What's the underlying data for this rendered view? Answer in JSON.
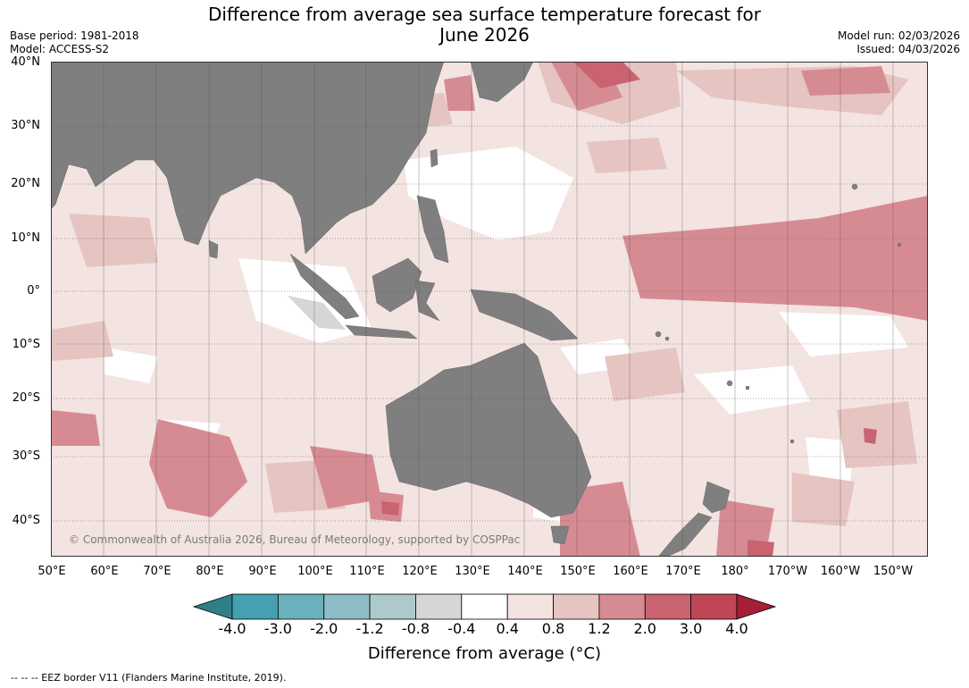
{
  "title": {
    "line1": "Difference from average sea surface temperature forecast for",
    "line2": "June 2026"
  },
  "meta": {
    "base_period": "Base period: 1981-2018",
    "model": "Model: ACCESS-S2",
    "model_run": "Model run: 02/03/2026",
    "issued": "Issued: 04/03/2026"
  },
  "latitude_labels": [
    "40°N",
    "30°N",
    "20°N",
    "10°N",
    "0°",
    "10°S",
    "20°S",
    "30°S",
    "40°S"
  ],
  "longitude_labels": [
    "50°E",
    "60°E",
    "70°E",
    "80°E",
    "90°E",
    "100°E",
    "110°E",
    "120°E",
    "130°E",
    "140°E",
    "150°E",
    "160°E",
    "170°E",
    "180°",
    "170°W",
    "160°W",
    "150°W"
  ],
  "colorbar": {
    "ticks": [
      "-4.0",
      "-3.0",
      "-2.0",
      "-1.2",
      "-0.8",
      "-0.4",
      "0.4",
      "0.8",
      "1.2",
      "2.0",
      "3.0",
      "4.0"
    ],
    "colors": {
      "below_min": "#2f7f86",
      "bins": [
        "#45a0b1",
        "#6bb0bd",
        "#8ebcc6",
        "#adc9cc",
        "#d6d6d6",
        "#ffffff",
        "#f3e3e1",
        "#e5c4c1",
        "#d68b93",
        "#c9636f",
        "#be4655"
      ],
      "above_max": "#a51f36"
    },
    "label": "Difference from average (°C)"
  },
  "map": {
    "land_color": "#7f7f7f",
    "ocean_base": "#f3e3e1"
  },
  "copyright": "© Commonwealth of Australia 2026, Bureau of Meteorology, supported by COSPPac",
  "footnote": "-- -- -- EEZ border V11 (Flanders Marine Institute, 2019)."
}
